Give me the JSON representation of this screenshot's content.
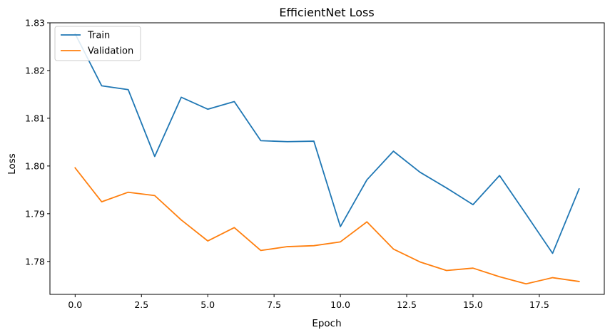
{
  "chart_data": {
    "type": "line",
    "title": "EfficientNet Loss",
    "xlabel": "Epoch",
    "ylabel": "Loss",
    "xlim": [
      -0.95,
      19.95
    ],
    "ylim": [
      1.7731,
      1.83
    ],
    "xticks": [
      0.0,
      2.5,
      5.0,
      7.5,
      10.0,
      12.5,
      15.0,
      17.5
    ],
    "xtick_labels": [
      "0.0",
      "2.5",
      "5.0",
      "7.5",
      "10.0",
      "12.5",
      "15.0",
      "17.5"
    ],
    "yticks": [
      1.78,
      1.79,
      1.8,
      1.81,
      1.82,
      1.83
    ],
    "ytick_labels": [
      "1.78",
      "1.79",
      "1.80",
      "1.81",
      "1.82",
      "1.83"
    ],
    "grid": false,
    "legend_position": "upper-left",
    "x": [
      0,
      1,
      2,
      3,
      4,
      5,
      6,
      7,
      8,
      9,
      10,
      11,
      12,
      13,
      14,
      15,
      16,
      17,
      18,
      19
    ],
    "series": [
      {
        "name": "Train",
        "color": "#1f77b4",
        "values": [
          1.8277,
          1.8168,
          1.816,
          1.802,
          1.8144,
          1.8119,
          1.8135,
          1.8053,
          1.8051,
          1.8052,
          1.7873,
          1.7971,
          1.8031,
          1.7987,
          1.7954,
          1.7919,
          1.798,
          1.7899,
          1.7817,
          1.7952
        ]
      },
      {
        "name": "Validation",
        "color": "#ff7f0e",
        "values": [
          1.7996,
          1.7925,
          1.7945,
          1.7938,
          1.7887,
          1.7843,
          1.7871,
          1.7823,
          1.7831,
          1.7833,
          1.7841,
          1.7883,
          1.7826,
          1.7799,
          1.7781,
          1.7786,
          1.7768,
          1.7753,
          1.7766,
          1.7758
        ]
      }
    ]
  }
}
